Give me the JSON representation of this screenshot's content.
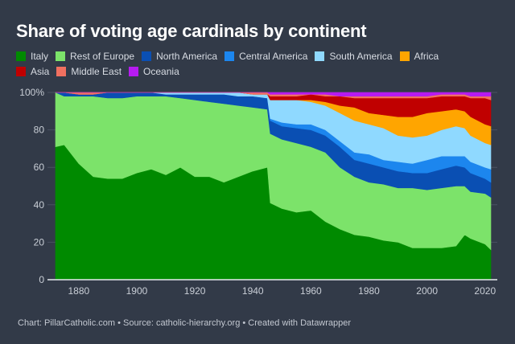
{
  "title": "Share of voting age cardinals by continent",
  "footer": "Chart: PillarCatholic.com • Source: catholic-hierarchy.org • Created with Datawrapper",
  "legend": [
    {
      "label": "Italy",
      "color": "#008a00"
    },
    {
      "label": "Rest of Europe",
      "color": "#7ce36a"
    },
    {
      "label": "North America",
      "color": "#0a4fb3"
    },
    {
      "label": "Central America",
      "color": "#1c86ee"
    },
    {
      "label": "South America",
      "color": "#8fd9ff"
    },
    {
      "label": "Africa",
      "color": "#ffa500"
    },
    {
      "label": "Asia",
      "color": "#c00000"
    },
    {
      "label": "Middle East",
      "color": "#f07060"
    },
    {
      "label": "Oceania",
      "color": "#b61bf0"
    }
  ],
  "chart_data": {
    "type": "area",
    "stacked": true,
    "title": "Share of voting age cardinals by continent",
    "xlabel": "",
    "ylabel": "",
    "xlim": [
      1872,
      2022
    ],
    "ylim": [
      0,
      100
    ],
    "y_ticks": [
      {
        "value": 0,
        "label": "0"
      },
      {
        "value": 20,
        "label": "20"
      },
      {
        "value": 40,
        "label": "40"
      },
      {
        "value": 60,
        "label": "60"
      },
      {
        "value": 80,
        "label": "80"
      },
      {
        "value": 100,
        "label": "100%"
      }
    ],
    "x_ticks": [
      {
        "value": 1880,
        "label": "1880"
      },
      {
        "value": 1900,
        "label": "1900"
      },
      {
        "value": 1920,
        "label": "1920"
      },
      {
        "value": 1940,
        "label": "1940"
      },
      {
        "value": 1960,
        "label": "1960"
      },
      {
        "value": 1980,
        "label": "1980"
      },
      {
        "value": 2000,
        "label": "2000"
      },
      {
        "value": 2020,
        "label": "2020"
      }
    ],
    "grid": true,
    "legend_position": "top-left",
    "x": [
      1872,
      1875,
      1880,
      1885,
      1890,
      1895,
      1900,
      1905,
      1910,
      1915,
      1920,
      1925,
      1930,
      1935,
      1940,
      1945,
      1946,
      1950,
      1955,
      1960,
      1965,
      1970,
      1975,
      1980,
      1985,
      1990,
      1995,
      2000,
      2005,
      2010,
      2013,
      2015,
      2020,
      2022
    ],
    "series": [
      {
        "name": "Italy",
        "values": [
          71,
          72,
          62,
          55,
          54,
          54,
          57,
          59,
          56,
          60,
          55,
          55,
          52,
          55,
          58,
          60,
          41,
          38,
          36,
          37,
          31,
          27,
          24,
          23,
          21,
          20,
          17,
          17,
          17,
          18,
          24,
          22,
          19,
          16
        ]
      },
      {
        "name": "Rest of Europe",
        "values": [
          29,
          26,
          36,
          43,
          43,
          43,
          41,
          39,
          42,
          37,
          41,
          40,
          42,
          38,
          34,
          31,
          37,
          37,
          37,
          34,
          37,
          33,
          31,
          29,
          30,
          29,
          32,
          31,
          32,
          32,
          26,
          25,
          27,
          28
        ]
      },
      {
        "name": "North America",
        "values": [
          0,
          2,
          1,
          1,
          3,
          3,
          2,
          2,
          1,
          2,
          3,
          4,
          5,
          5,
          6,
          6,
          7,
          7,
          8,
          9,
          9,
          11,
          9,
          10,
          9,
          9,
          8,
          9,
          10,
          11,
          10,
          10,
          8,
          8
        ]
      },
      {
        "name": "Central America",
        "values": [
          0,
          0,
          0,
          0,
          0,
          0,
          0,
          0,
          0,
          0,
          0,
          0,
          0,
          0,
          0,
          0,
          1,
          2,
          2,
          3,
          3,
          3,
          4,
          5,
          4,
          5,
          5,
          7,
          7,
          5,
          6,
          6,
          6,
          7
        ]
      },
      {
        "name": "South America",
        "values": [
          0,
          0,
          0,
          0,
          0,
          0,
          0,
          0,
          1,
          1,
          1,
          1,
          1,
          2,
          1,
          2,
          10,
          12,
          13,
          12,
          13,
          15,
          17,
          16,
          17,
          14,
          14,
          13,
          14,
          16,
          15,
          14,
          13,
          13
        ]
      },
      {
        "name": "Africa",
        "values": [
          0,
          0,
          0,
          0,
          0,
          0,
          0,
          0,
          0,
          0,
          0,
          0,
          0,
          0,
          0,
          0,
          0,
          0,
          0,
          1,
          2,
          4,
          7,
          6,
          7,
          10,
          11,
          12,
          10,
          9,
          9,
          10,
          10,
          10
        ]
      },
      {
        "name": "Asia",
        "values": [
          0,
          0,
          0,
          0,
          0,
          0,
          0,
          0,
          0,
          0,
          0,
          0,
          0,
          0,
          0,
          0,
          2,
          2,
          2,
          3,
          3,
          5,
          5,
          8,
          9,
          10,
          10,
          8,
          8,
          7,
          8,
          10,
          14,
          14
        ]
      },
      {
        "name": "Middle East",
        "values": [
          0,
          0,
          1,
          1,
          0,
          0,
          0,
          0,
          0,
          0,
          0,
          0,
          0,
          0,
          1,
          1,
          1,
          1,
          1,
          0,
          1,
          0,
          1,
          1,
          1,
          1,
          1,
          1,
          1,
          1,
          1,
          1,
          1,
          2
        ]
      },
      {
        "name": "Oceania",
        "values": [
          0,
          0,
          0,
          0,
          0,
          0,
          0,
          0,
          0,
          0,
          0,
          0,
          0,
          0,
          0,
          0,
          1,
          1,
          1,
          1,
          1,
          2,
          2,
          2,
          2,
          2,
          2,
          2,
          1,
          1,
          1,
          2,
          2,
          2
        ]
      }
    ]
  }
}
